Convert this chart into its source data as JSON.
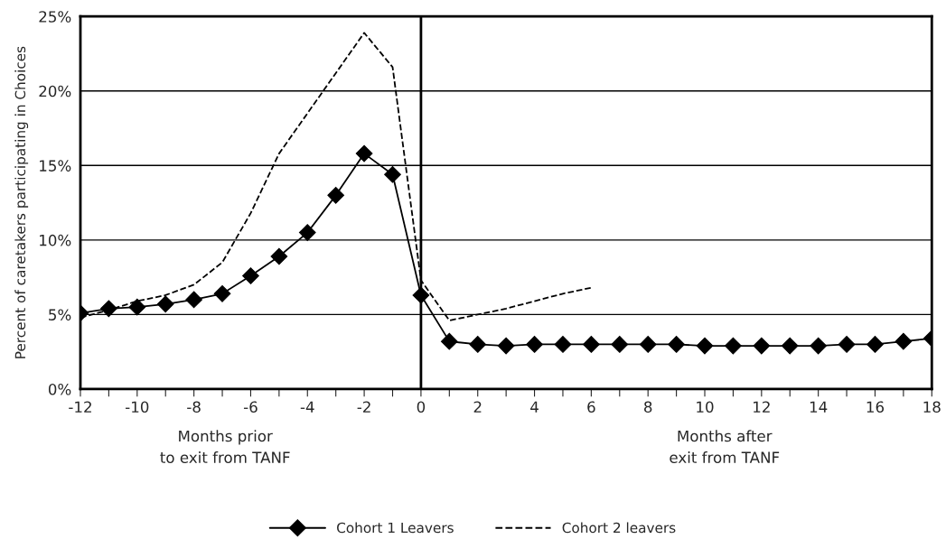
{
  "chart_data": {
    "type": "line",
    "ylabel": "Percent of caretakers participating in Choices",
    "annotations": [
      "Months prior\nto exit from TANF",
      "Months after\nexit from TANF"
    ],
    "xlim": [
      -12,
      18
    ],
    "xticks": [
      -12,
      {
        "value": -11,
        "label": null
      },
      -10,
      {
        "value": -9,
        "label": null
      },
      -8,
      {
        "value": -7,
        "label": null
      },
      -6,
      {
        "value": -5,
        "label": null
      },
      -4,
      {
        "value": -3,
        "label": null
      },
      -2,
      {
        "value": -1,
        "label": null
      },
      0,
      {
        "value": 1,
        "label": null
      },
      2,
      {
        "value": 3,
        "label": null
      },
      4,
      {
        "value": 5,
        "label": null
      },
      6,
      {
        "value": 7,
        "label": null
      },
      8,
      {
        "value": 9,
        "label": null
      },
      10,
      {
        "value": 11,
        "label": null
      },
      12,
      {
        "value": 13,
        "label": null
      },
      14,
      {
        "value": 15,
        "label": null
      },
      16,
      {
        "value": 17,
        "label": null
      },
      18
    ],
    "ylim": [
      0,
      25
    ],
    "yticks": [
      {
        "value": 0,
        "label": "0%"
      },
      {
        "value": 5,
        "label": "5%"
      },
      {
        "value": 10,
        "label": "10%"
      },
      {
        "value": 15,
        "label": "15%"
      },
      {
        "value": 20,
        "label": "20%"
      },
      {
        "value": 25,
        "label": "25%"
      }
    ],
    "grid": "y",
    "legend": "bottom",
    "ref_lines": [
      {
        "axis": "x",
        "value": 0,
        "color": "#000000"
      }
    ],
    "series": [
      {
        "name": "Cohort 1 Leavers",
        "color": "#000000",
        "marker": "diamond",
        "line_style": "solid",
        "x": [
          -12,
          -11,
          -10,
          -9,
          -8,
          -7,
          -6,
          -5,
          -4,
          -3,
          -2,
          -1,
          0,
          1,
          2,
          3,
          4,
          5,
          6,
          7,
          8,
          9,
          10,
          11,
          12,
          13,
          14,
          15,
          16,
          17,
          18
        ],
        "values": [
          5.1,
          5.4,
          5.5,
          5.7,
          6.0,
          6.4,
          7.6,
          8.9,
          10.5,
          13.0,
          15.8,
          14.4,
          6.3,
          3.2,
          3.0,
          2.9,
          3.0,
          3.0,
          3.0,
          3.0,
          3.0,
          3.0,
          2.9,
          2.9,
          2.9,
          2.9,
          2.9,
          3.0,
          3.0,
          3.2,
          3.4
        ]
      },
      {
        "name": "Cohort 2 leavers",
        "color": "#000000",
        "marker": "none",
        "line_style": "dashed",
        "x": [
          -12,
          -11,
          -10,
          -9,
          -8,
          -7,
          -6,
          -5,
          -4,
          -3,
          -2,
          -1,
          0,
          1,
          2,
          3,
          4,
          5,
          6
        ],
        "values": [
          4.8,
          5.3,
          5.9,
          6.3,
          7.0,
          8.5,
          11.8,
          15.8,
          18.5,
          21.2,
          23.9,
          21.6,
          7.3,
          4.6,
          5.0,
          5.4,
          5.9,
          6.4,
          6.8
        ]
      }
    ]
  }
}
